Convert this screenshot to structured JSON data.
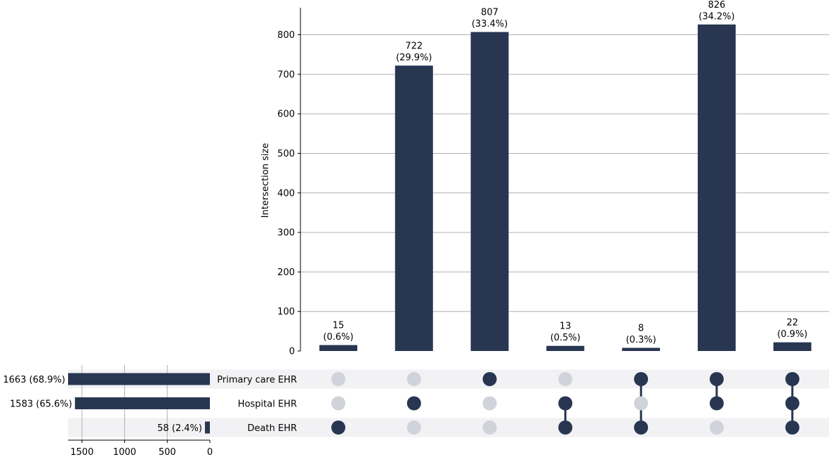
{
  "chart_data": {
    "type": "upset",
    "ylabel": "Intersection size",
    "ylim": [
      0,
      870
    ],
    "yticks": [
      0,
      100,
      200,
      300,
      400,
      500,
      600,
      700,
      800
    ],
    "colors": {
      "bar": "#283652",
      "dot_active": "#283652",
      "dot_inactive": "#d0d3d9",
      "stripe": "#f2f2f4",
      "grid": "#b0b0b0"
    },
    "sets": [
      {
        "name": "Primary care EHR",
        "size": 1663,
        "label": "1663 (68.9%)"
      },
      {
        "name": "Hospital EHR",
        "size": 1583,
        "label": "1583 (65.6%)"
      },
      {
        "name": "Death EHR",
        "size": 58,
        "label": "58 (2.4%)"
      }
    ],
    "set_size_axis": {
      "xlim": [
        0,
        1663
      ],
      "ticks": [
        1500,
        1000,
        500,
        0
      ]
    },
    "intersections": [
      {
        "members": [
          false,
          false,
          true
        ],
        "value": 15,
        "count_label": "15",
        "pct_label": "(0.6%)"
      },
      {
        "members": [
          false,
          true,
          false
        ],
        "value": 722,
        "count_label": "722",
        "pct_label": "(29.9%)"
      },
      {
        "members": [
          true,
          false,
          false
        ],
        "value": 807,
        "count_label": "807",
        "pct_label": "(33.4%)"
      },
      {
        "members": [
          false,
          true,
          true
        ],
        "value": 13,
        "count_label": "13",
        "pct_label": "(0.5%)"
      },
      {
        "members": [
          true,
          false,
          true
        ],
        "value": 8,
        "count_label": "8",
        "pct_label": "(0.3%)"
      },
      {
        "members": [
          true,
          true,
          false
        ],
        "value": 826,
        "count_label": "826",
        "pct_label": "(34.2%)"
      },
      {
        "members": [
          true,
          true,
          true
        ],
        "value": 22,
        "count_label": "22",
        "pct_label": "(0.9%)"
      }
    ]
  }
}
